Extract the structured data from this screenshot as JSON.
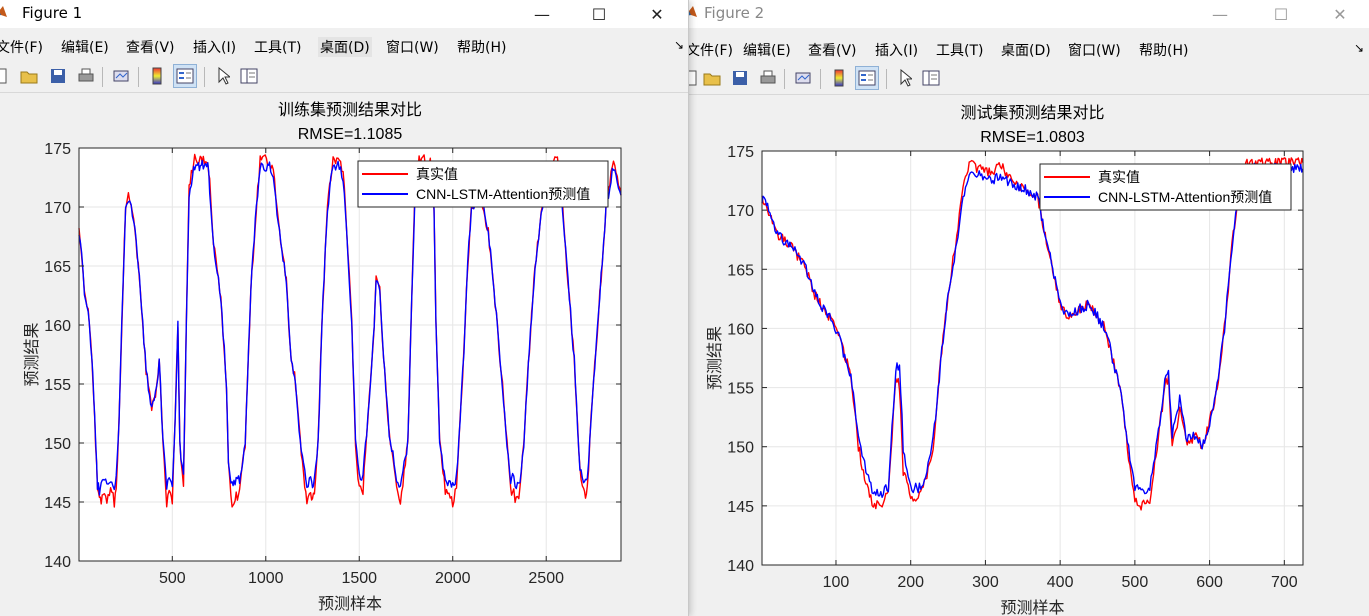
{
  "windows": [
    {
      "title": "Figure 1",
      "menu": [
        "文件(F)",
        "编辑(E)",
        "查看(V)",
        "插入(I)",
        "工具(T)",
        "桌面(D)",
        "窗口(W)",
        "帮助(H)"
      ],
      "chart_data": {
        "type": "line",
        "title": "训练集预测结果对比",
        "subtitle": "RMSE=1.1085",
        "xlabel": "预测样本",
        "ylabel": "预测结果",
        "xlim": [
          1,
          2900
        ],
        "ylim": [
          140,
          175
        ],
        "xticks": [
          500,
          1000,
          1500,
          2000,
          2500
        ],
        "yticks": [
          140,
          145,
          150,
          155,
          160,
          165,
          170,
          175
        ],
        "grid": true,
        "legend_position": "top-right",
        "series": [
          {
            "name": "真实值",
            "color": "#ff0000",
            "x": [
              1,
              15,
              30,
              50,
              70,
              80,
              90,
              100,
              110,
              120,
              130,
              150,
              170,
              190,
              200,
              215,
              230,
              250,
              265,
              280,
              300,
              330,
              360,
              390,
              410,
              430,
              450,
              470,
              490,
              500,
              515,
              530,
              540,
              560,
              575,
              590,
              620,
              640,
              650,
              660,
              690,
              700,
              720,
              760,
              790,
              800,
              820,
              830,
              860,
              890,
              920,
              950,
              970,
              990,
              1010,
              1020,
              1040,
              1080,
              1110,
              1130,
              1160,
              1190,
              1220,
              1240,
              1250,
              1260,
              1280,
              1300,
              1330,
              1360,
              1380,
              1400,
              1420,
              1440,
              1460,
              1480,
              1500,
              1520,
              1560,
              1580,
              1590,
              1610,
              1630,
              1660,
              1700,
              1720,
              1760,
              1780,
              1800,
              1820,
              1840,
              1880,
              1900,
              1910,
              1930,
              1960,
              2000,
              2020,
              2040,
              2060,
              2080,
              2100,
              2130,
              2160,
              2190,
              2220,
              2260,
              2290,
              2310,
              2320,
              2340,
              2360,
              2380,
              2410,
              2440,
              2480,
              2510,
              2540,
              2560,
              2580,
              2610,
              2650,
              2680,
              2700,
              2710,
              2720,
              2740,
              2780,
              2820,
              2860,
              2900
            ],
            "y": [
              168,
              166,
              163,
              161,
              157,
              154,
              150,
              146,
              145,
              145,
              146,
              145,
              146,
              145,
              146,
              152,
              160,
              170,
              171,
              170,
              168,
              163,
              156,
              153,
              154,
              157,
              150,
              145,
              146,
              145,
              152,
              160,
              150,
              146,
              160,
              172,
              174,
              174,
              174,
              174,
              174,
              172,
              167,
              162,
              155,
              148,
              145,
              145,
              146,
              150,
              163,
              170,
              174,
              174,
              174,
              174,
              173,
              167,
              164,
              158,
              155,
              149,
              145,
              146,
              145,
              146,
              150,
              160,
              170,
              174,
              174,
              174,
              172,
              166,
              160,
              150,
              146,
              146,
              155,
              160,
              164,
              163,
              157,
              151,
              146,
              145,
              150,
              162,
              172,
              174,
              174,
              174,
              170,
              160,
              150,
              146,
              145,
              146,
              152,
              158,
              165,
              170,
              171,
              170,
              168,
              163,
              156,
              150,
              146,
              146,
              145,
              146,
              150,
              158,
              165,
              170,
              172,
              174,
              174,
              172,
              165,
              157,
              148,
              146,
              145,
              146,
              152,
              161,
              170,
              174,
              171
            ]
          },
          {
            "name": "CNN-LSTM-Attention预测值",
            "color": "#0000ff",
            "x": [
              1,
              15,
              30,
              50,
              70,
              80,
              90,
              100,
              110,
              120,
              130,
              150,
              170,
              190,
              200,
              215,
              230,
              250,
              265,
              280,
              300,
              330,
              360,
              390,
              410,
              430,
              450,
              470,
              490,
              500,
              515,
              530,
              540,
              560,
              575,
              590,
              620,
              640,
              650,
              660,
              690,
              700,
              720,
              760,
              790,
              800,
              820,
              830,
              860,
              890,
              920,
              950,
              970,
              990,
              1010,
              1020,
              1040,
              1080,
              1110,
              1130,
              1160,
              1190,
              1220,
              1240,
              1250,
              1260,
              1280,
              1300,
              1330,
              1360,
              1380,
              1400,
              1420,
              1440,
              1460,
              1480,
              1500,
              1520,
              1560,
              1580,
              1590,
              1610,
              1630,
              1660,
              1700,
              1720,
              1760,
              1780,
              1800,
              1820,
              1840,
              1880,
              1900,
              1910,
              1930,
              1960,
              2000,
              2020,
              2040,
              2060,
              2080,
              2100,
              2130,
              2160,
              2190,
              2220,
              2260,
              2290,
              2310,
              2320,
              2340,
              2360,
              2380,
              2410,
              2440,
              2480,
              2510,
              2540,
              2560,
              2580,
              2610,
              2650,
              2680,
              2700,
              2710,
              2720,
              2740,
              2780,
              2820,
              2860,
              2900
            ],
            "y": [
              168,
              166,
              163,
              161,
              157,
              154,
              150,
              146.5,
              146,
              146.5,
              147,
              146.5,
              147,
              146.5,
              147,
              152,
              160,
              170,
              170.5,
              170,
              168,
              163,
              156,
              153,
              154,
              157,
              150,
              146.5,
              147,
              146.5,
              152,
              160,
              150,
              147,
              160,
              171,
              173.5,
              173.5,
              173.5,
              173.5,
              173.5,
              171.5,
              167,
              162,
              155,
              148,
              146.5,
              146.5,
              147,
              150,
              163,
              170,
              173.5,
              173.5,
              173.5,
              173.5,
              172.5,
              167,
              164,
              158,
              155,
              149,
              146.5,
              147,
              146.5,
              147,
              150,
              160,
              170,
              173.5,
              173.5,
              173.5,
              171.5,
              166,
              160,
              150,
              147,
              147,
              155,
              160,
              164,
              163,
              157,
              151,
              147,
              146.5,
              150,
              162,
              171.5,
              173.5,
              173.5,
              173.5,
              170,
              160,
              150,
              147,
              146.5,
              147,
              152,
              158,
              165,
              170,
              170.5,
              170,
              168,
              163,
              156,
              150,
              147,
              147,
              146.5,
              147,
              150,
              158,
              165,
              170,
              171.5,
              173.5,
              173.5,
              171.5,
              165,
              157,
              148,
              147,
              146.5,
              147,
              152,
              161,
              170,
              173.5,
              171
            ]
          }
        ]
      }
    },
    {
      "title": "Figure 2",
      "menu": [
        "文件(F)",
        "编辑(E)",
        "查看(V)",
        "插入(I)",
        "工具(T)",
        "桌面(D)",
        "窗口(W)",
        "帮助(H)"
      ],
      "chart_data": {
        "type": "line",
        "title": "测试集预测结果对比",
        "subtitle": "RMSE=1.0803",
        "xlabel": "预测样本",
        "ylabel": "预测结果",
        "xlim": [
          1,
          725
        ],
        "ylim": [
          140,
          175
        ],
        "xticks": [
          100,
          200,
          300,
          400,
          500,
          600,
          700
        ],
        "yticks": [
          140,
          145,
          150,
          155,
          160,
          165,
          170,
          175
        ],
        "grid": true,
        "legend_position": "top-right",
        "series": [
          {
            "name": "真实值",
            "color": "#ff0000",
            "x": [
              1,
              10,
              20,
              40,
              60,
              70,
              80,
              90,
              100,
              120,
              130,
              140,
              150,
              160,
              170,
              180,
              185,
              190,
              200,
              210,
              220,
              230,
              240,
              250,
              260,
              270,
              280,
              290,
              300,
              310,
              320,
              330,
              340,
              350,
              360,
              370,
              380,
              390,
              400,
              410,
              420,
              440,
              460,
              480,
              490,
              500,
              510,
              520,
              530,
              540,
              545,
              550,
              560,
              570,
              580,
              590,
              600,
              610,
              620,
              630,
              640,
              650,
              660,
              680,
              700,
              725
            ],
            "y": [
              171,
              170,
              168,
              167,
              165,
              163,
              162,
              161,
              160,
              156,
              150,
              147,
              145,
              145,
              146,
              156,
              155,
              148,
              145.5,
              146,
              147,
              150,
              157,
              163,
              167,
              172,
              174,
              173.5,
              173.5,
              173,
              174,
              173,
              172,
              172,
              171.5,
              171,
              168,
              165,
              162,
              161,
              161.5,
              162,
              160,
              155,
              150,
              145.5,
              145,
              145.5,
              150,
              155,
              156,
              150,
              153,
              150,
              151,
              150,
              152,
              155,
              160,
              167,
              172,
              174,
              174,
              174,
              174,
              174
            ]
          },
          {
            "name": "CNN-LSTM-Attention预测值",
            "color": "#0000ff",
            "x": [
              1,
              10,
              20,
              40,
              60,
              70,
              80,
              90,
              100,
              120,
              130,
              140,
              150,
              160,
              170,
              180,
              185,
              190,
              200,
              210,
              220,
              230,
              240,
              250,
              260,
              270,
              280,
              290,
              300,
              310,
              320,
              330,
              340,
              350,
              360,
              370,
              380,
              390,
              400,
              410,
              420,
              440,
              460,
              480,
              490,
              500,
              510,
              520,
              530,
              540,
              545,
              550,
              560,
              570,
              580,
              590,
              600,
              610,
              620,
              630,
              640,
              650,
              660,
              680,
              700,
              725
            ],
            "y": [
              171,
              170,
              168,
              167,
              165,
              163,
              162,
              161,
              160,
              156,
              151,
              148,
              146,
              146,
              146.5,
              156.5,
              157,
              150,
              146.5,
              146.5,
              147.5,
              150.5,
              157,
              163,
              166.5,
              171,
              173,
              173,
              172.5,
              172.5,
              173,
              172.5,
              172,
              172,
              171.5,
              171,
              168,
              165,
              162,
              161,
              161.5,
              162,
              160,
              155,
              150.5,
              146.5,
              146,
              146.5,
              150.5,
              155.5,
              156.5,
              151,
              154,
              150.5,
              151,
              150,
              152,
              155,
              160,
              167,
              172,
              173.5,
              173.5,
              173.5,
              173.5,
              173.5
            ]
          }
        ]
      }
    }
  ]
}
